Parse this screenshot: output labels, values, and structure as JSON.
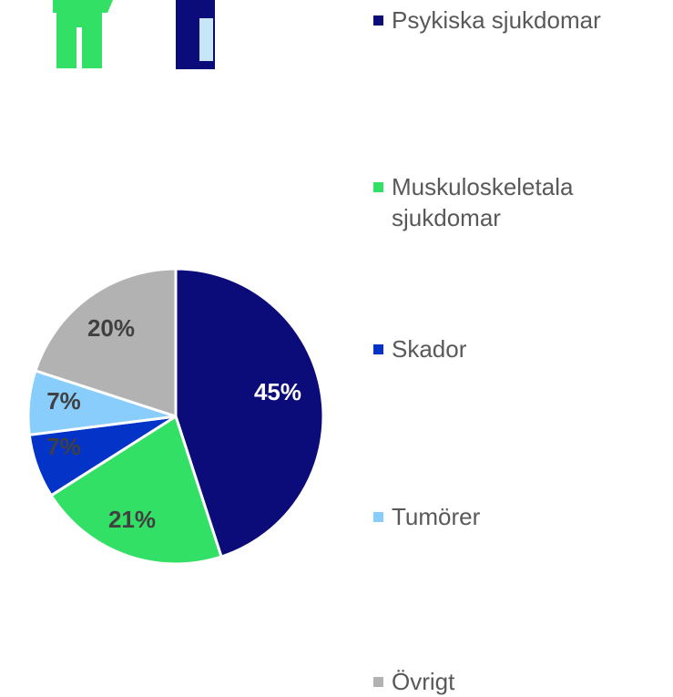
{
  "chart_data": {
    "type": "pie",
    "categories": [
      "Psykiska sjukdomar",
      "Muskuloskeletala sjukdomar",
      "Skador",
      "Tumörer",
      "Övrigt"
    ],
    "values": [
      45,
      21,
      7,
      7,
      20
    ],
    "value_labels": [
      "45%",
      "21%",
      "7%",
      "7%",
      "20%"
    ],
    "colors": [
      "#0b0b7a",
      "#33e066",
      "#0433c8",
      "#88cdfb",
      "#b2b2b2"
    ],
    "label_colors": [
      "#ffffff",
      "#404040",
      "#404040",
      "#404040",
      "#404040"
    ]
  }
}
